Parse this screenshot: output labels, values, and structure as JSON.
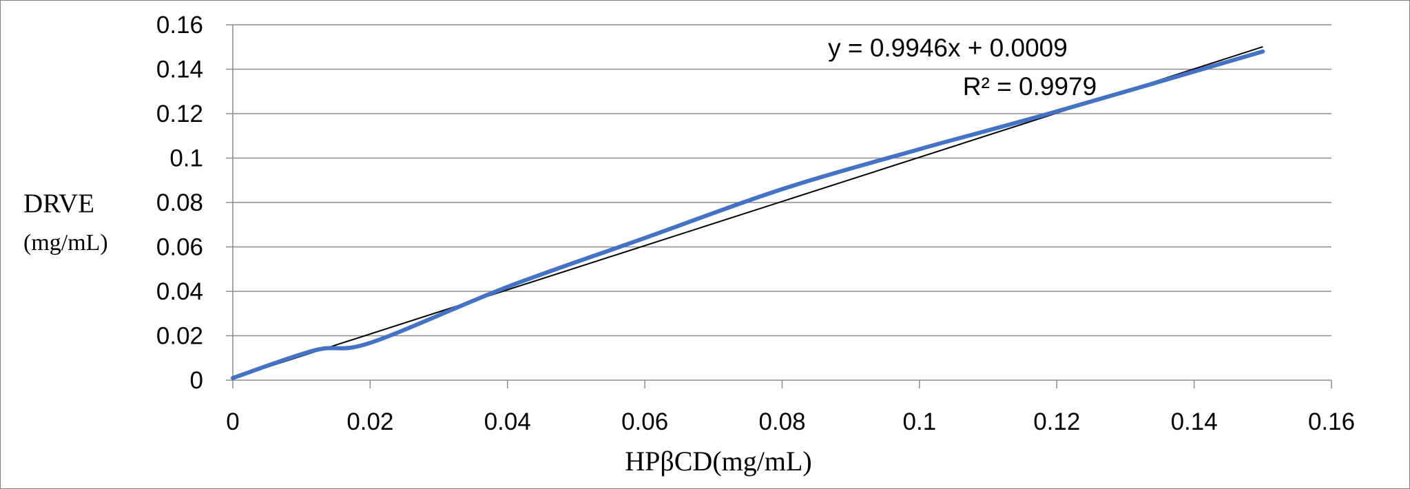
{
  "chart_data": {
    "type": "line",
    "title": "",
    "xlabel": "HPβCD(mg/mL)",
    "ylabel": "DRVE",
    "ylabel_unit": "(mg/mL)",
    "xlim": [
      0,
      0.16
    ],
    "ylim": [
      0,
      0.16
    ],
    "x_ticks": [
      "0",
      "0.02",
      "0.04",
      "0.06",
      "0.08",
      "0.1",
      "0.12",
      "0.14",
      "0.16"
    ],
    "y_ticks": [
      "0",
      "0.02",
      "0.04",
      "0.06",
      "0.08",
      "0.1",
      "0.12",
      "0.14",
      "0.16"
    ],
    "grid": "horizontal",
    "series": [
      {
        "color": "#4472C4",
        "x": [
          0,
          0.012,
          0.02,
          0.04,
          0.06,
          0.08,
          0.1,
          0.12,
          0.15
        ],
        "y": [
          0.001,
          0.0135,
          0.0168,
          0.042,
          0.064,
          0.086,
          0.104,
          0.121,
          0.148
        ]
      }
    ],
    "trendline": {
      "color": "#000000",
      "slope": 0.9946,
      "intercept": 0.0009,
      "x_range": [
        0,
        0.15
      ],
      "equation_label": "y = 0.9946x + 0.0009",
      "r2_label": "R² = 0.9979"
    }
  }
}
